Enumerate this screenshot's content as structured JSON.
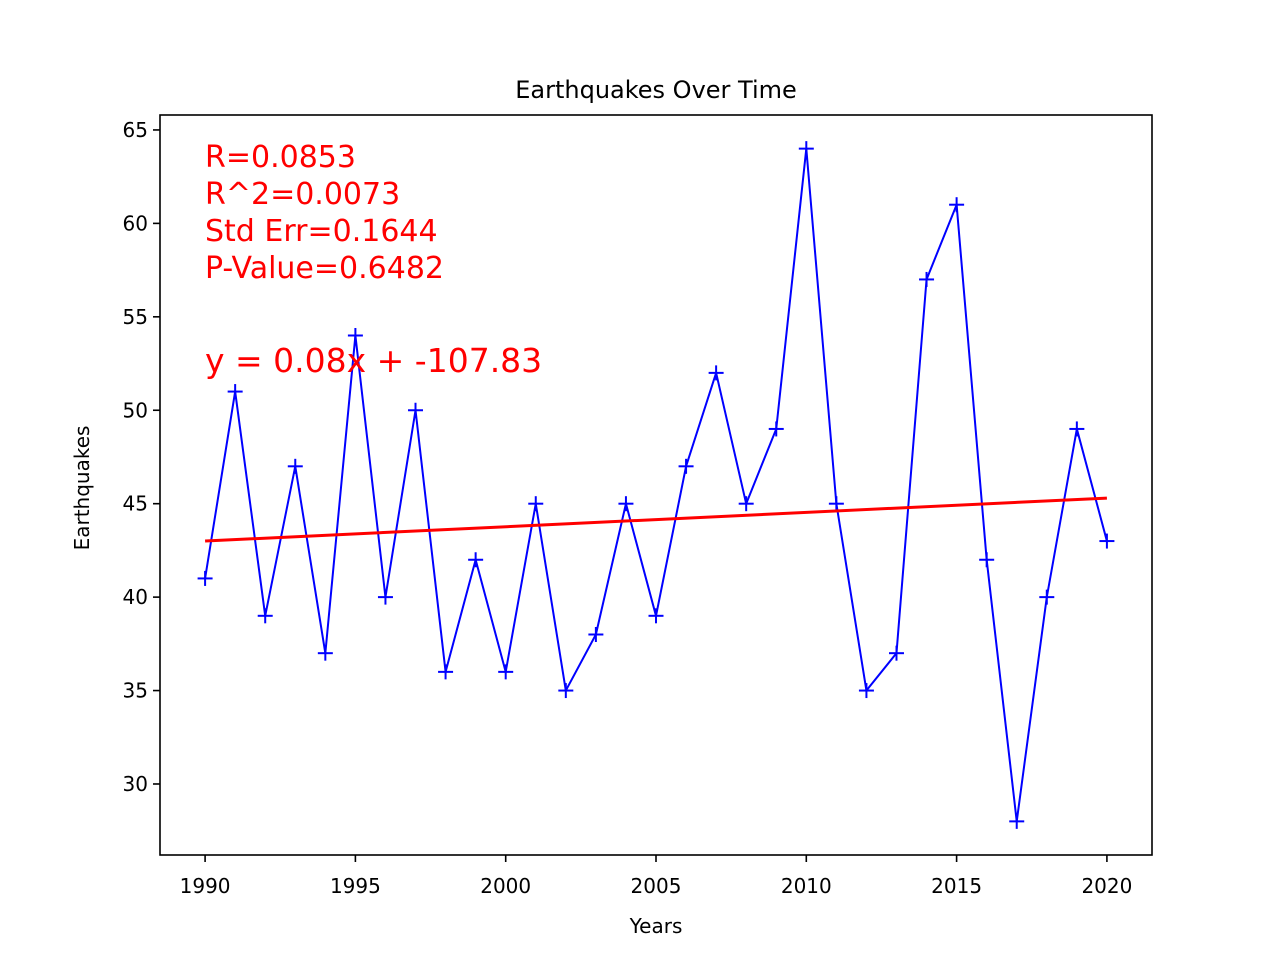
{
  "chart_data": {
    "type": "line",
    "title": "Earthquakes Over Time",
    "xlabel": "Years",
    "ylabel": "Earthquakes",
    "xlim": [
      1988.5,
      2021.5
    ],
    "ylim": [
      26.2,
      65.8
    ],
    "x_ticks": [
      1990,
      1995,
      2000,
      2005,
      2010,
      2015,
      2020
    ],
    "y_ticks": [
      30,
      35,
      40,
      45,
      50,
      55,
      60,
      65
    ],
    "grid": false,
    "series": [
      {
        "marker": "+",
        "color": "#0000ff",
        "x": [
          1990,
          1991,
          1992,
          1993,
          1994,
          1995,
          1996,
          1997,
          1998,
          1999,
          2000,
          2001,
          2002,
          2003,
          2004,
          2005,
          2006,
          2007,
          2008,
          2009,
          2010,
          2011,
          2012,
          2013,
          2014,
          2015,
          2016,
          2017,
          2018,
          2019,
          2020
        ],
        "y": [
          41,
          51,
          39,
          47,
          37,
          54,
          40,
          50,
          36,
          42,
          36,
          45,
          35,
          38,
          45,
          39,
          47,
          52,
          45,
          49,
          64,
          45,
          35,
          37,
          57,
          61,
          42,
          28,
          40,
          49,
          43
        ]
      }
    ],
    "regression": {
      "color": "#ff0000",
      "x": [
        1990,
        2020
      ],
      "y": [
        43.0,
        45.3
      ]
    },
    "annotations": {
      "color": "#ff0000",
      "stats": [
        "R=0.0853",
        "R^2=0.0073",
        "Std Err=0.1644",
        "P-Value=0.6482"
      ],
      "equation": "y = 0.08x + -107.83"
    }
  }
}
